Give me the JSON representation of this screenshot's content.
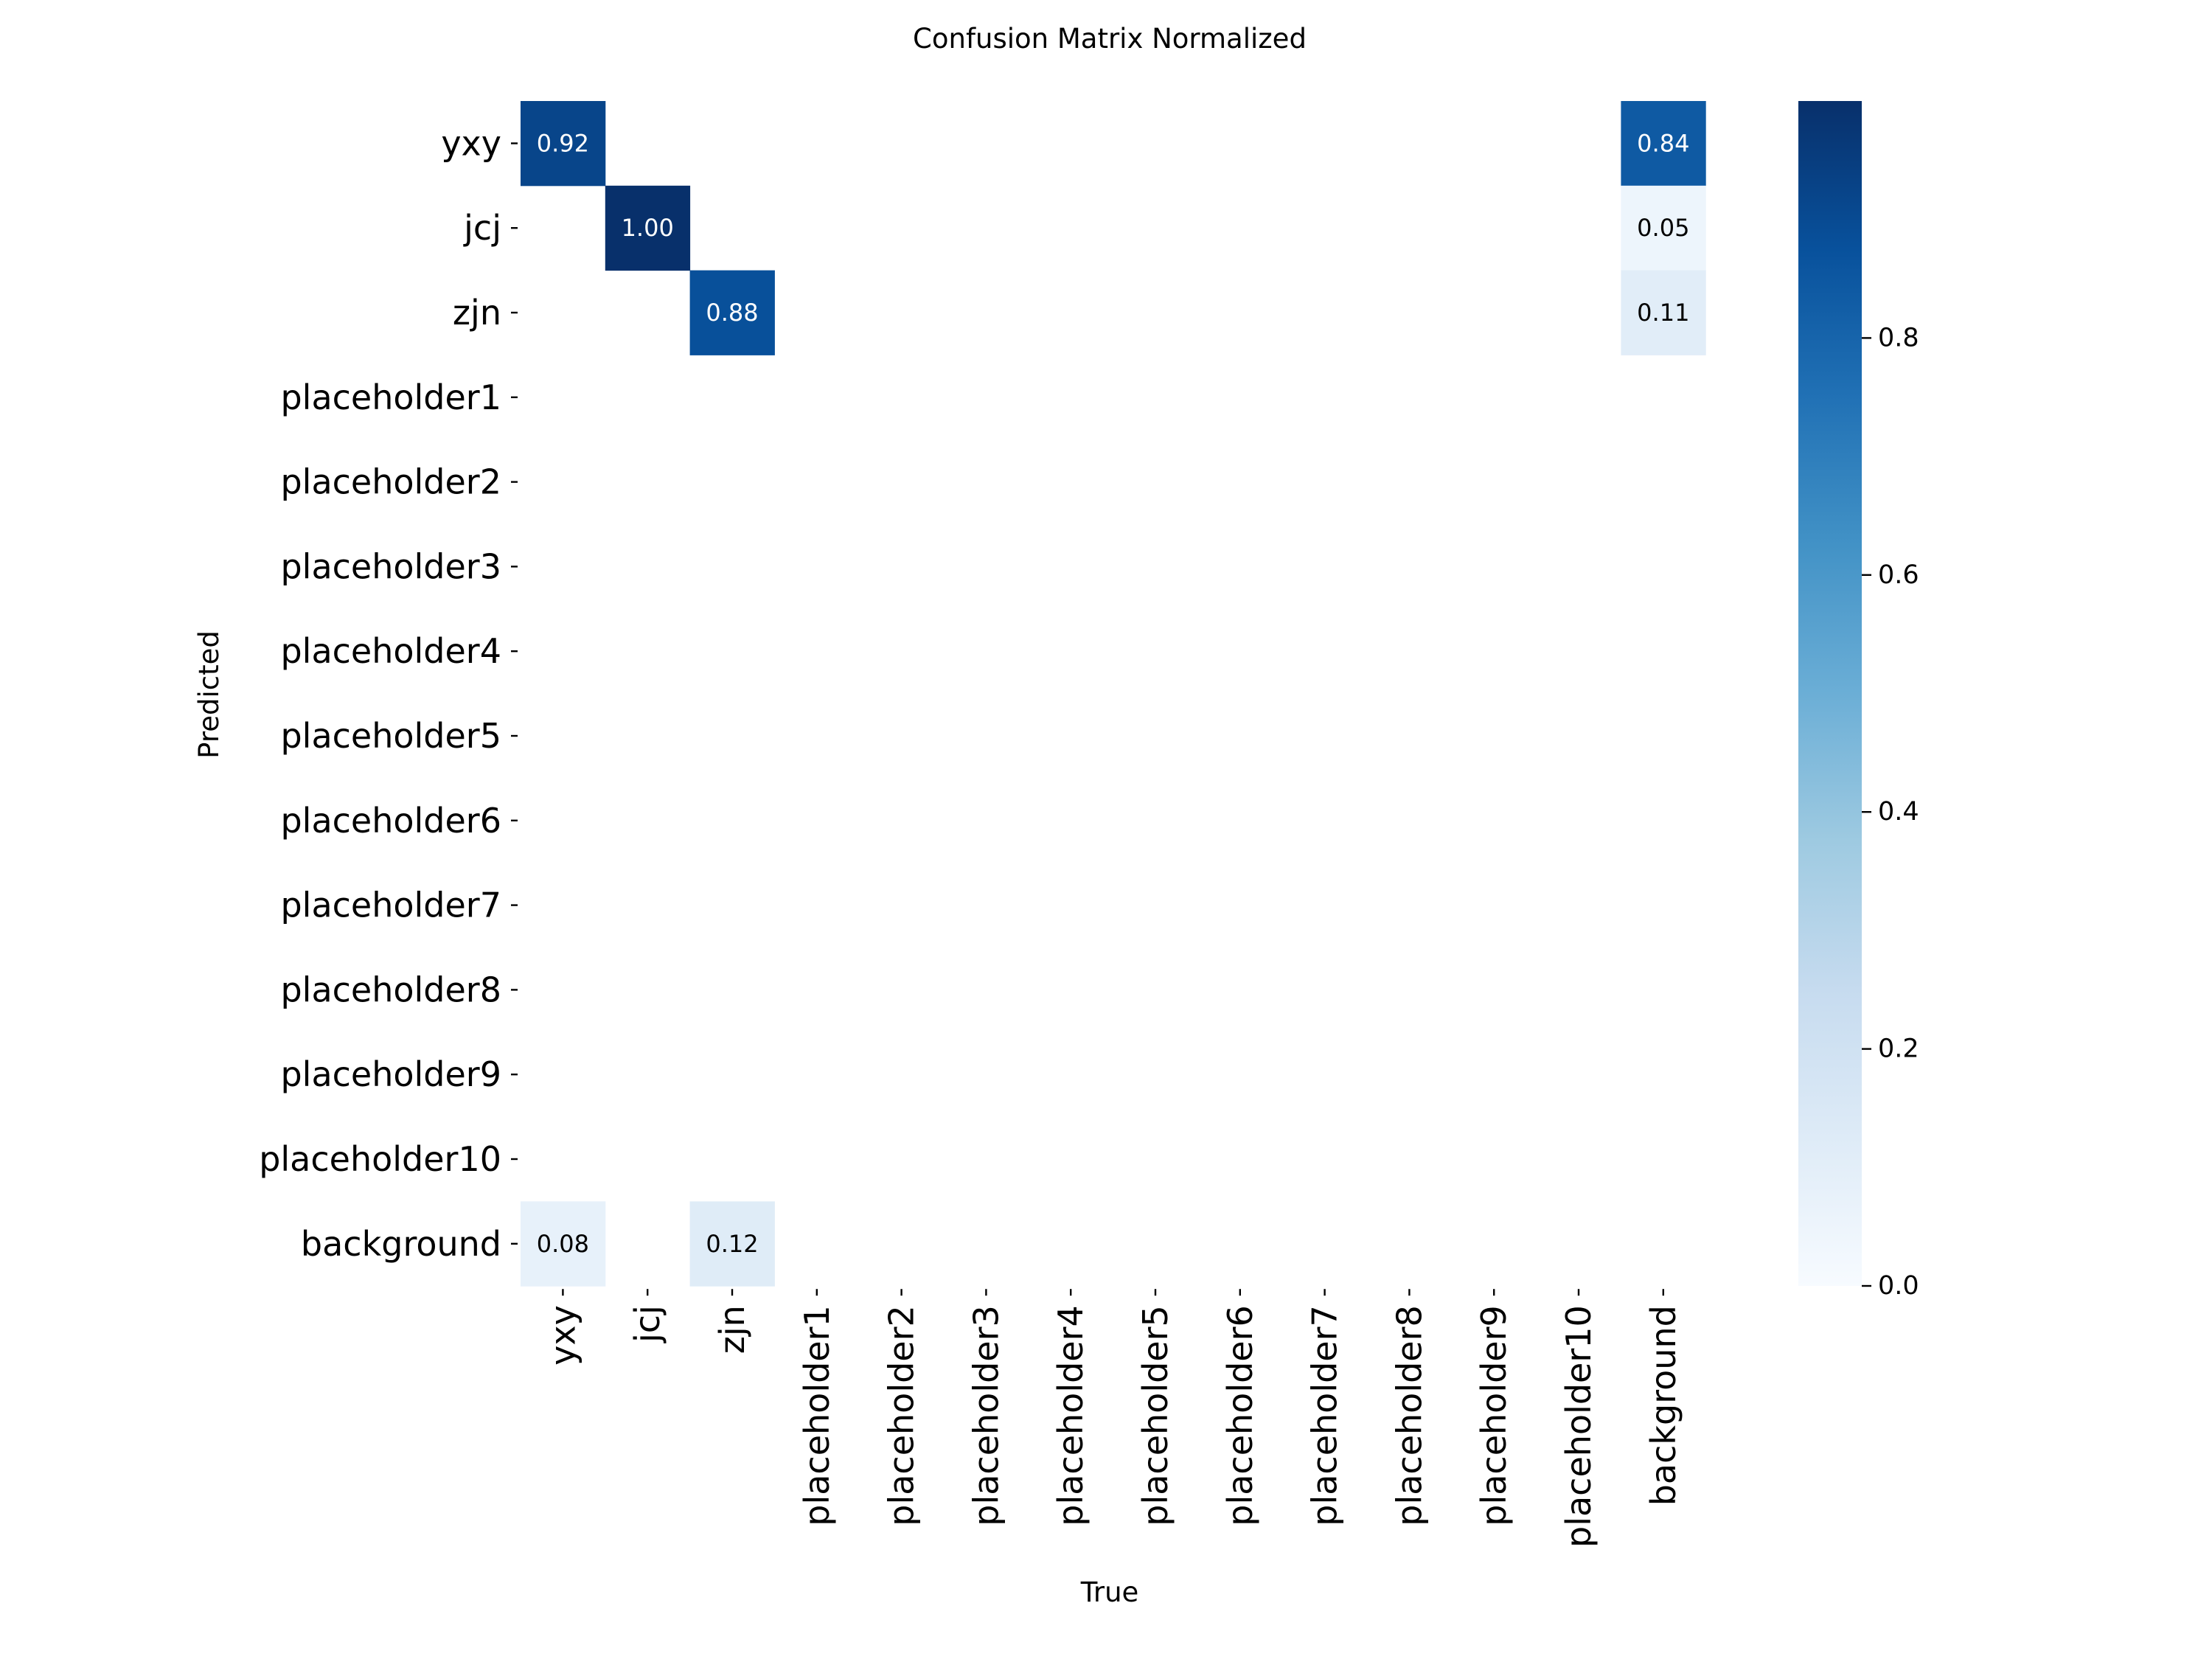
{
  "chart_data": {
    "type": "heatmap",
    "title": "Confusion Matrix Normalized",
    "xlabel": "True",
    "ylabel": "Predicted",
    "x_categories": [
      "yxy",
      "jcj",
      "zjn",
      "placeholder1",
      "placeholder2",
      "placeholder3",
      "placeholder4",
      "placeholder5",
      "placeholder6",
      "placeholder7",
      "placeholder8",
      "placeholder9",
      "placeholder10",
      "background"
    ],
    "y_categories": [
      "yxy",
      "jcj",
      "zjn",
      "placeholder1",
      "placeholder2",
      "placeholder3",
      "placeholder4",
      "placeholder5",
      "placeholder6",
      "placeholder7",
      "placeholder8",
      "placeholder9",
      "placeholder10",
      "background"
    ],
    "cells": [
      {
        "row": "yxy",
        "col": "yxy",
        "value": 0.92,
        "label": "0.92"
      },
      {
        "row": "yxy",
        "col": "background",
        "value": 0.84,
        "label": "0.84"
      },
      {
        "row": "jcj",
        "col": "jcj",
        "value": 1.0,
        "label": "1.00"
      },
      {
        "row": "jcj",
        "col": "background",
        "value": 0.05,
        "label": "0.05"
      },
      {
        "row": "zjn",
        "col": "zjn",
        "value": 0.88,
        "label": "0.88"
      },
      {
        "row": "zjn",
        "col": "background",
        "value": 0.11,
        "label": "0.11"
      },
      {
        "row": "background",
        "col": "yxy",
        "value": 0.08,
        "label": "0.08"
      },
      {
        "row": "background",
        "col": "zjn",
        "value": 0.12,
        "label": "0.12"
      }
    ],
    "colormap": "Blues",
    "colorbar": {
      "range": [
        0,
        1.0
      ],
      "ticks": [
        {
          "value": 0.0,
          "label": "0.0"
        },
        {
          "value": 0.2,
          "label": "0.2"
        },
        {
          "value": 0.4,
          "label": "0.4"
        },
        {
          "value": 0.6,
          "label": "0.6"
        },
        {
          "value": 0.8,
          "label": "0.8"
        }
      ]
    },
    "grid": false,
    "legend": "colorbar-right"
  }
}
